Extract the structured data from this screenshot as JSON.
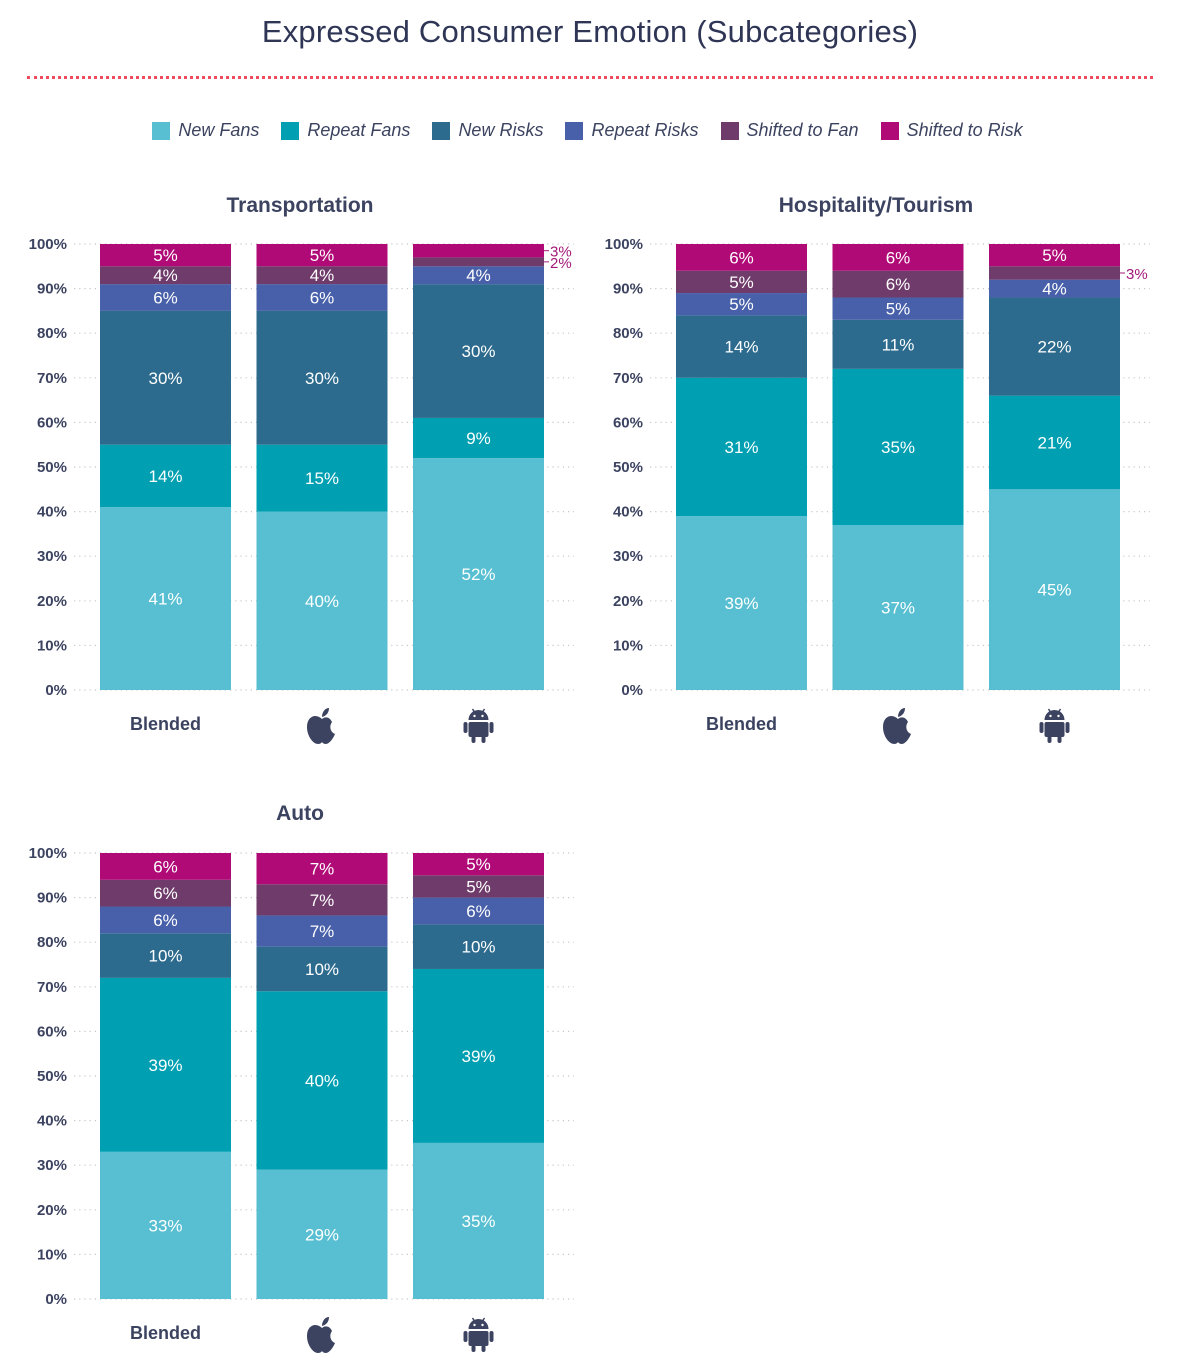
{
  "title": "Expressed Consumer Emotion (Subcategories)",
  "legend": [
    {
      "name": "New Fans",
      "color": "#57bfd1"
    },
    {
      "name": "Repeat Fans",
      "color": "#00a0b2"
    },
    {
      "name": "New Risks",
      "color": "#2d6b8e"
    },
    {
      "name": "Repeat Risks",
      "color": "#4760a9"
    },
    {
      "name": "Shifted to Fan",
      "color": "#6e3b6a"
    },
    {
      "name": "Shifted to Risk",
      "color": "#b00a77"
    }
  ],
  "chart_data": [
    {
      "type": "bar",
      "stacked": true,
      "title": "Transportation",
      "categories": [
        "Blended",
        "apple-icon",
        "android-icon"
      ],
      "ylim": [
        0,
        100
      ],
      "yticks": [
        "0%",
        "10%",
        "20%",
        "30%",
        "40%",
        "50%",
        "60%",
        "70%",
        "80%",
        "90%",
        "100%"
      ],
      "grid": true,
      "series": [
        {
          "name": "New Fans",
          "values": [
            41,
            40,
            52
          ],
          "labels": [
            "41%",
            "40%",
            "52%"
          ]
        },
        {
          "name": "Repeat Fans",
          "values": [
            14,
            15,
            9
          ],
          "labels": [
            "14%",
            "15%",
            "9%"
          ]
        },
        {
          "name": "New Risks",
          "values": [
            30,
            30,
            30
          ],
          "labels": [
            "30%",
            "30%",
            "30%"
          ]
        },
        {
          "name": "Repeat Risks",
          "values": [
            6,
            6,
            4
          ],
          "labels": [
            "6%",
            "6%",
            "4%"
          ]
        },
        {
          "name": "Shifted to Fan",
          "values": [
            4,
            4,
            2
          ],
          "labels": [
            "4%",
            "4%",
            "2%"
          ]
        },
        {
          "name": "Shifted to Risk",
          "values": [
            5,
            5,
            3
          ],
          "labels": [
            "5%",
            "5%",
            "3%"
          ]
        }
      ]
    },
    {
      "type": "bar",
      "stacked": true,
      "title": "Hospitality/Tourism",
      "categories": [
        "Blended",
        "apple-icon",
        "android-icon"
      ],
      "ylim": [
        0,
        100
      ],
      "yticks": [
        "0%",
        "10%",
        "20%",
        "30%",
        "40%",
        "50%",
        "60%",
        "70%",
        "80%",
        "90%",
        "100%"
      ],
      "grid": true,
      "series": [
        {
          "name": "New Fans",
          "values": [
            39,
            37,
            45
          ],
          "labels": [
            "39%",
            "37%",
            "45%"
          ]
        },
        {
          "name": "Repeat Fans",
          "values": [
            31,
            35,
            21
          ],
          "labels": [
            "31%",
            "35%",
            "21%"
          ]
        },
        {
          "name": "New Risks",
          "values": [
            14,
            11,
            22
          ],
          "labels": [
            "14%",
            "11%",
            "22%"
          ]
        },
        {
          "name": "Repeat Risks",
          "values": [
            5,
            5,
            4
          ],
          "labels": [
            "5%",
            "5%",
            "4%"
          ]
        },
        {
          "name": "Shifted to Fan",
          "values": [
            5,
            6,
            3
          ],
          "labels": [
            "5%",
            "6%",
            "3%"
          ]
        },
        {
          "name": "Shifted to Risk",
          "values": [
            6,
            6,
            5
          ],
          "labels": [
            "6%",
            "6%",
            "5%"
          ]
        }
      ]
    },
    {
      "type": "bar",
      "stacked": true,
      "title": "Auto",
      "categories": [
        "Blended",
        "apple-icon",
        "android-icon"
      ],
      "ylim": [
        0,
        100
      ],
      "yticks": [
        "0%",
        "10%",
        "20%",
        "30%",
        "40%",
        "50%",
        "60%",
        "70%",
        "80%",
        "90%",
        "100%"
      ],
      "grid": true,
      "series": [
        {
          "name": "New Fans",
          "values": [
            33,
            29,
            35
          ],
          "labels": [
            "33%",
            "29%",
            "35%"
          ]
        },
        {
          "name": "Repeat Fans",
          "values": [
            39,
            40,
            39
          ],
          "labels": [
            "39%",
            "40%",
            "39%"
          ]
        },
        {
          "name": "New Risks",
          "values": [
            10,
            10,
            10
          ],
          "labels": [
            "10%",
            "10%",
            "10%"
          ]
        },
        {
          "name": "Repeat Risks",
          "values": [
            6,
            7,
            6
          ],
          "labels": [
            "6%",
            "7%",
            "6%"
          ]
        },
        {
          "name": "Shifted to Fan",
          "values": [
            6,
            7,
            5
          ],
          "labels": [
            "6%",
            "7%",
            "5%"
          ]
        },
        {
          "name": "Shifted to Risk",
          "values": [
            6,
            7,
            5
          ],
          "labels": [
            "6%",
            "7%",
            "5%"
          ]
        }
      ]
    }
  ]
}
